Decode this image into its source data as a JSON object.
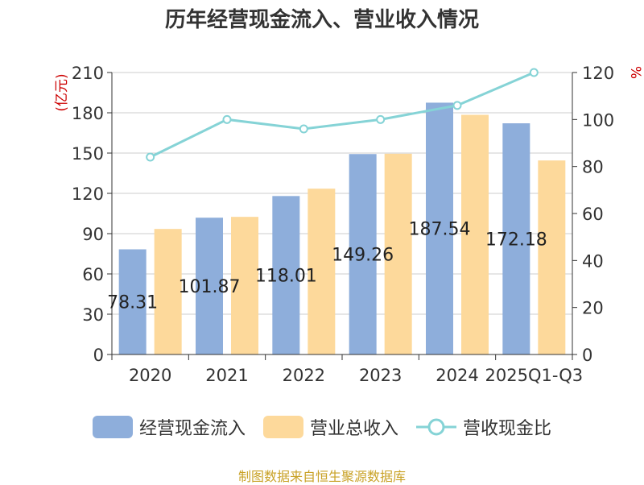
{
  "title": "历年经营现金流入、营业收入情况",
  "left_unit": "(亿元)",
  "right_unit": "%",
  "source": "制图数据来自恒生聚源数据库",
  "colors": {
    "cash_inflow": "#8eaedb",
    "revenue": "#fdd99b",
    "ratio": "#85d3d6"
  },
  "chart_data": {
    "type": "bar",
    "categories": [
      "2020",
      "2021",
      "2022",
      "2023",
      "2024",
      "2025Q1-Q3"
    ],
    "series": [
      {
        "name": "经营现金流入",
        "axis": "left",
        "values": [
          78.31,
          101.87,
          118.01,
          149.26,
          187.54,
          172.18
        ],
        "labels": [
          "78.31",
          "101.87",
          "118.01",
          "149.26",
          "187.54",
          "172.18"
        ]
      },
      {
        "name": "营业总收入",
        "axis": "left",
        "values": [
          93.5,
          102.5,
          123.5,
          149.5,
          178.5,
          144.5
        ]
      },
      {
        "name": "营收现金比",
        "axis": "right",
        "type": "line",
        "values": [
          84,
          100,
          96,
          100,
          106,
          120
        ]
      }
    ],
    "left_axis": {
      "min": 0,
      "max": 210,
      "ticks": [
        "0",
        "30",
        "60",
        "90",
        "120",
        "150",
        "180",
        "210"
      ]
    },
    "right_axis": {
      "min": 0,
      "max": 120,
      "ticks": [
        "0",
        "20",
        "40",
        "60",
        "80",
        "100",
        "120"
      ]
    },
    "grid": true,
    "legend": "bottom"
  }
}
